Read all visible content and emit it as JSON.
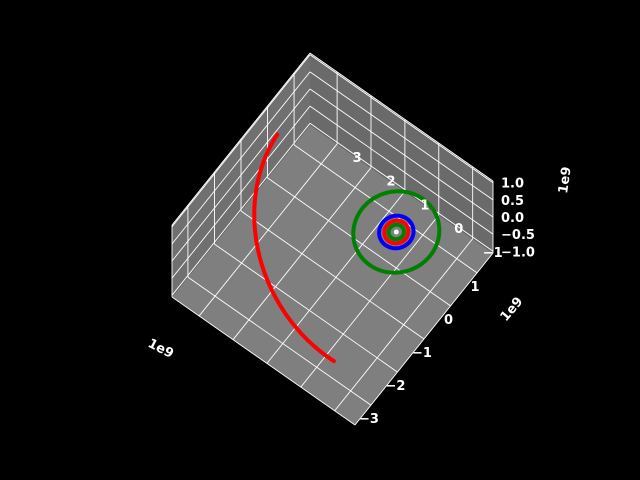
{
  "chart_data": {
    "type": "line",
    "projection": "3d",
    "background": "#000000",
    "pane_color": "#7f7f7f",
    "grid": true,
    "axes": {
      "x": {
        "offset_text": "1e9",
        "ticks": [
          -3,
          -2,
          -1,
          0,
          1
        ],
        "tick_labels": [
          "−3",
          "−2",
          "−1",
          "0",
          "1"
        ],
        "lim": [
          -3.6,
          1.6
        ]
      },
      "y": {
        "offset_text": "1e9",
        "ticks": [
          -1,
          0,
          1,
          2,
          3
        ],
        "tick_labels": [
          "−1",
          "0",
          "1",
          "2",
          "3"
        ],
        "lim": [
          -1.6,
          3.8
        ]
      },
      "z": {
        "offset_text": "1e9",
        "ticks": [
          -1.0,
          -0.5,
          0.0,
          0.5,
          1.0
        ],
        "tick_labels": [
          "−1.0",
          "−0.5",
          "0.0",
          "0.5",
          "1.0"
        ],
        "lim": [
          -1.05,
          1.05
        ]
      }
    },
    "series": [
      {
        "color": "#ff0000",
        "kind": "arc",
        "center": [
          0,
          0
        ],
        "radius": 3.3,
        "z_amplitude": 0.85,
        "phase_start": 95,
        "phase_end": 192
      },
      {
        "color": "#008000",
        "kind": "orbit",
        "center": [
          0,
          0
        ],
        "radius": 1.0
      },
      {
        "color": "#0000ff",
        "kind": "orbit",
        "center": [
          0,
          0
        ],
        "radius": 0.4
      },
      {
        "color": "#ff0000",
        "kind": "orbit",
        "center": [
          0,
          0
        ],
        "radius": 0.28
      },
      {
        "color": "#008000",
        "kind": "orbit",
        "center": [
          0,
          0
        ],
        "radius": 0.18
      },
      {
        "color": "#ffffff",
        "kind": "point",
        "center": [
          0,
          0
        ],
        "radius": 0.04
      }
    ]
  }
}
